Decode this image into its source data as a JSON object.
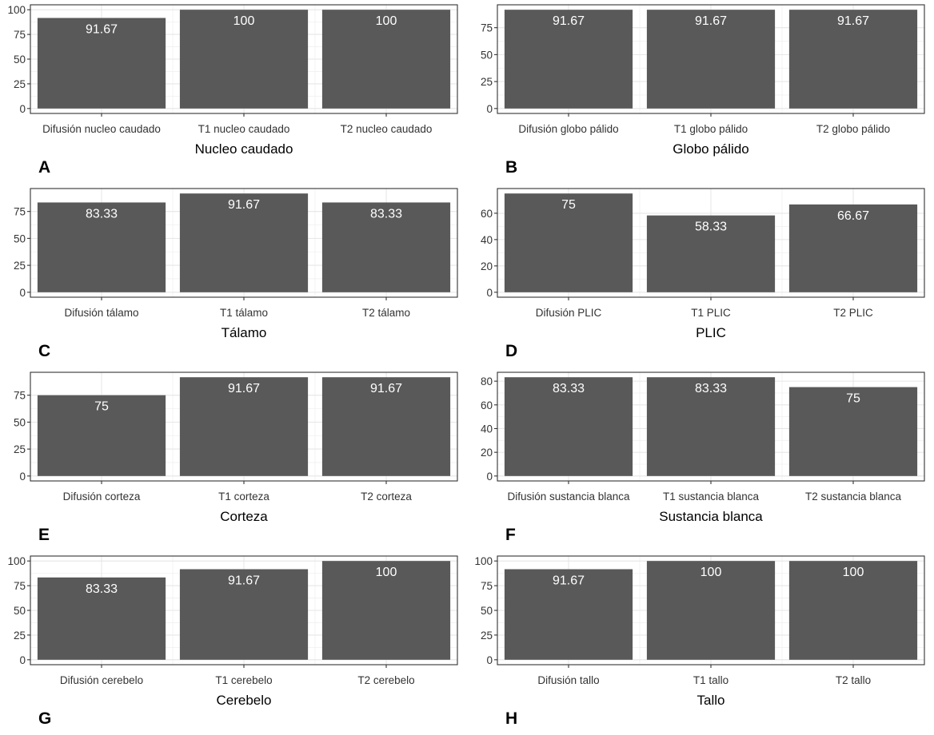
{
  "chart_data": [
    {
      "type": "bar",
      "panel_label": "A",
      "xlabel": "Nucleo caudado",
      "ylabel": "",
      "categories": [
        "Difusión nucleo caudado",
        "T1 nucleo caudado",
        "T2 nucleo caudado"
      ],
      "values": [
        91.67,
        100,
        100
      ],
      "value_labels": [
        "91.67",
        "100",
        "100"
      ],
      "ylim": [
        0,
        100
      ],
      "yticks": [
        0,
        25,
        50,
        75,
        100
      ],
      "grid": true,
      "bar_color": "#595959"
    },
    {
      "type": "bar",
      "panel_label": "B",
      "xlabel": "Globo pálido",
      "ylabel": "",
      "categories": [
        "Difusión globo pálido",
        "T1 globo pálido",
        "T2 globo pálido"
      ],
      "values": [
        91.67,
        91.67,
        91.67
      ],
      "value_labels": [
        "91.67",
        "91.67",
        "91.67"
      ],
      "ylim": [
        0,
        91.67
      ],
      "yticks": [
        0,
        25,
        50,
        75
      ],
      "grid": true,
      "bar_color": "#595959"
    },
    {
      "type": "bar",
      "panel_label": "C",
      "xlabel": "Tálamo",
      "ylabel": "",
      "categories": [
        "Difusión tálamo",
        "T1 tálamo",
        "T2 tálamo"
      ],
      "values": [
        83.33,
        91.67,
        83.33
      ],
      "value_labels": [
        "83.33",
        "91.67",
        "83.33"
      ],
      "ylim": [
        0,
        91.67
      ],
      "yticks": [
        0,
        25,
        50,
        75
      ],
      "grid": true,
      "bar_color": "#595959"
    },
    {
      "type": "bar",
      "panel_label": "D",
      "xlabel": "PLIC",
      "ylabel": "",
      "categories": [
        "Difusión PLIC",
        "T1 PLIC",
        "T2 PLIC"
      ],
      "values": [
        75,
        58.33,
        66.67
      ],
      "value_labels": [
        "75",
        "58.33",
        "66.67"
      ],
      "ylim": [
        0,
        75
      ],
      "yticks": [
        0,
        20,
        40,
        60
      ],
      "grid": true,
      "bar_color": "#595959"
    },
    {
      "type": "bar",
      "panel_label": "E",
      "xlabel": "Corteza",
      "ylabel": "",
      "categories": [
        "Difusión corteza",
        "T1 corteza",
        "T2 corteza"
      ],
      "values": [
        75,
        91.67,
        91.67
      ],
      "value_labels": [
        "75",
        "91.67",
        "91.67"
      ],
      "ylim": [
        0,
        91.67
      ],
      "yticks": [
        0,
        25,
        50,
        75
      ],
      "grid": true,
      "bar_color": "#595959"
    },
    {
      "type": "bar",
      "panel_label": "F",
      "xlabel": "Sustancia blanca",
      "ylabel": "",
      "categories": [
        "Difusión sustancia blanca",
        "T1 sustancia blanca",
        "T2 sustancia blanca"
      ],
      "values": [
        83.33,
        83.33,
        75
      ],
      "value_labels": [
        "83.33",
        "83.33",
        "75"
      ],
      "ylim": [
        0,
        83.33
      ],
      "yticks": [
        0,
        20,
        40,
        60,
        80
      ],
      "grid": true,
      "bar_color": "#595959"
    },
    {
      "type": "bar",
      "panel_label": "G",
      "xlabel": "Cerebelo",
      "ylabel": "",
      "categories": [
        "Difusión cerebelo",
        "T1 cerebelo",
        "T2 cerebelo"
      ],
      "values": [
        83.33,
        91.67,
        100
      ],
      "value_labels": [
        "83.33",
        "91.67",
        "100"
      ],
      "ylim": [
        0,
        100
      ],
      "yticks": [
        0,
        25,
        50,
        75,
        100
      ],
      "grid": true,
      "bar_color": "#595959"
    },
    {
      "type": "bar",
      "panel_label": "H",
      "xlabel": "Tallo",
      "ylabel": "",
      "categories": [
        "Difusión tallo",
        "T1 tallo",
        "T2 tallo"
      ],
      "values": [
        91.67,
        100,
        100
      ],
      "value_labels": [
        "91.67",
        "100",
        "100"
      ],
      "ylim": [
        0,
        100
      ],
      "yticks": [
        0,
        25,
        50,
        75,
        100
      ],
      "grid": true,
      "bar_color": "#595959"
    }
  ]
}
